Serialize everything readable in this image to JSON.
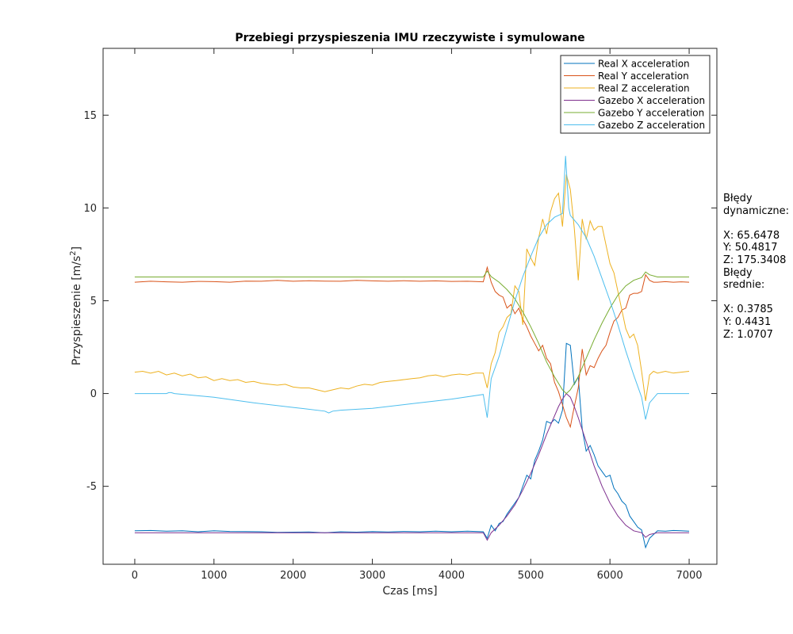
{
  "chart_data": {
    "type": "line",
    "title": "Przebiegi przyspieszenia IMU rzeczywiste i symulowane",
    "xlabel": "Czas [ms]",
    "ylabel_base": "Przyspieszenie [m/s",
    "ylabel_sup": "2",
    "ylabel_end": "]",
    "xlim": [
      -400,
      7350
    ],
    "ylim": [
      -9.2,
      18.6
    ],
    "xticks": [
      0,
      1000,
      2000,
      3000,
      4000,
      5000,
      6000,
      7000
    ],
    "xtick_labels": [
      "0",
      "1000",
      "2000",
      "3000",
      "4000",
      "5000",
      "6000",
      "7000"
    ],
    "yticks": [
      -5,
      0,
      5,
      10,
      15
    ],
    "ytick_labels": [
      "-5",
      "0",
      "5",
      "10",
      "15"
    ],
    "grid": false,
    "legend_position": "top-right",
    "series": [
      {
        "name": "Real X acceleration",
        "color": "#0072BD",
        "x": [
          0,
          200,
          400,
          600,
          800,
          1000,
          1200,
          1400,
          1600,
          1800,
          2000,
          2200,
          2400,
          2600,
          2800,
          3000,
          3200,
          3400,
          3600,
          3800,
          4000,
          4200,
          4400,
          4450,
          4500,
          4550,
          4600,
          4650,
          4700,
          4750,
          4800,
          4850,
          4900,
          4950,
          5000,
          5050,
          5100,
          5150,
          5200,
          5250,
          5300,
          5350,
          5400,
          5450,
          5500,
          5550,
          5600,
          5650,
          5700,
          5750,
          5800,
          5850,
          5900,
          5950,
          6000,
          6050,
          6100,
          6150,
          6200,
          6250,
          6300,
          6350,
          6400,
          6450,
          6500,
          6550,
          6600,
          6700,
          6800,
          6900,
          7000
        ],
        "y": [
          -7.4,
          -7.38,
          -7.42,
          -7.4,
          -7.45,
          -7.4,
          -7.43,
          -7.44,
          -7.45,
          -7.48,
          -7.47,
          -7.46,
          -7.5,
          -7.45,
          -7.47,
          -7.44,
          -7.46,
          -7.43,
          -7.45,
          -7.42,
          -7.45,
          -7.42,
          -7.45,
          -7.8,
          -7.1,
          -7.4,
          -7.0,
          -6.9,
          -6.5,
          -6.2,
          -5.9,
          -5.6,
          -5.0,
          -4.4,
          -4.6,
          -3.6,
          -3.1,
          -2.5,
          -1.5,
          -1.6,
          -1.4,
          -1.6,
          -0.9,
          2.7,
          2.6,
          0.5,
          0.9,
          -1.9,
          -3.1,
          -2.8,
          -3.3,
          -3.9,
          -4.2,
          -4.5,
          -4.4,
          -5.1,
          -5.4,
          -5.8,
          -6.0,
          -6.6,
          -6.9,
          -7.2,
          -7.35,
          -8.3,
          -7.8,
          -7.6,
          -7.4,
          -7.42,
          -7.38,
          -7.4,
          -7.42
        ]
      },
      {
        "name": "Real Y acceleration",
        "color": "#D95319",
        "x": [
          0,
          200,
          400,
          600,
          800,
          1000,
          1200,
          1400,
          1600,
          1800,
          2000,
          2200,
          2400,
          2600,
          2800,
          3000,
          3200,
          3400,
          3600,
          3800,
          4000,
          4200,
          4400,
          4450,
          4500,
          4550,
          4600,
          4650,
          4700,
          4750,
          4800,
          4850,
          4900,
          4950,
          5000,
          5050,
          5100,
          5150,
          5200,
          5250,
          5300,
          5350,
          5400,
          5450,
          5500,
          5550,
          5600,
          5650,
          5700,
          5750,
          5800,
          5850,
          5900,
          5950,
          6000,
          6050,
          6100,
          6150,
          6200,
          6250,
          6300,
          6350,
          6400,
          6450,
          6500,
          6550,
          6600,
          6700,
          6800,
          6900,
          7000
        ],
        "y": [
          6.0,
          6.05,
          6.02,
          6.0,
          6.04,
          6.03,
          6.0,
          6.06,
          6.05,
          6.1,
          6.05,
          6.08,
          6.06,
          6.05,
          6.1,
          6.07,
          6.05,
          6.08,
          6.05,
          6.07,
          6.04,
          6.05,
          6.02,
          6.8,
          6.0,
          5.5,
          5.3,
          5.2,
          4.6,
          4.8,
          4.3,
          4.6,
          4.0,
          3.6,
          3.1,
          2.7,
          2.3,
          2.6,
          1.9,
          1.6,
          0.6,
          0.1,
          -0.6,
          -1.3,
          -1.8,
          -0.7,
          0.3,
          2.4,
          1.0,
          1.5,
          1.4,
          1.9,
          2.3,
          2.6,
          3.3,
          3.9,
          4.1,
          4.5,
          4.6,
          5.3,
          5.4,
          5.4,
          5.5,
          6.4,
          6.1,
          6.0,
          6.0,
          6.03,
          6.0,
          6.02,
          6.0
        ]
      },
      {
        "name": "Real Z acceleration",
        "color": "#EDB120",
        "x": [
          0,
          100,
          200,
          300,
          400,
          500,
          600,
          700,
          800,
          900,
          1000,
          1100,
          1200,
          1300,
          1400,
          1500,
          1600,
          1700,
          1800,
          1900,
          2000,
          2100,
          2200,
          2300,
          2400,
          2500,
          2600,
          2700,
          2800,
          2900,
          3000,
          3100,
          3200,
          3300,
          3400,
          3500,
          3600,
          3700,
          3800,
          3900,
          4000,
          4100,
          4200,
          4300,
          4400,
          4450,
          4500,
          4550,
          4600,
          4650,
          4700,
          4750,
          4800,
          4850,
          4900,
          4950,
          5000,
          5050,
          5100,
          5150,
          5200,
          5250,
          5300,
          5350,
          5400,
          5450,
          5500,
          5550,
          5600,
          5650,
          5700,
          5750,
          5800,
          5850,
          5900,
          5950,
          6000,
          6050,
          6100,
          6150,
          6200,
          6250,
          6300,
          6350,
          6400,
          6450,
          6500,
          6550,
          6600,
          6700,
          6800,
          6900,
          7000
        ],
        "y": [
          1.15,
          1.2,
          1.1,
          1.2,
          1.0,
          1.1,
          0.95,
          1.05,
          0.85,
          0.9,
          0.7,
          0.8,
          0.7,
          0.75,
          0.6,
          0.65,
          0.55,
          0.5,
          0.45,
          0.5,
          0.35,
          0.3,
          0.3,
          0.2,
          0.1,
          0.2,
          0.3,
          0.25,
          0.4,
          0.5,
          0.45,
          0.6,
          0.65,
          0.7,
          0.75,
          0.8,
          0.85,
          0.95,
          1.0,
          0.9,
          1.0,
          1.05,
          1.0,
          1.1,
          1.1,
          0.3,
          1.6,
          2.2,
          3.3,
          3.6,
          4.1,
          4.3,
          5.8,
          5.5,
          3.7,
          7.8,
          7.3,
          6.9,
          8.4,
          9.4,
          8.6,
          9.8,
          10.5,
          10.8,
          9.0,
          11.8,
          11.0,
          8.9,
          6.1,
          9.4,
          8.3,
          9.3,
          8.8,
          9.0,
          9.0,
          8.0,
          7.0,
          6.5,
          5.5,
          4.5,
          3.5,
          3.0,
          3.2,
          2.6,
          1.2,
          -0.4,
          1.0,
          1.2,
          1.1,
          1.2,
          1.1,
          1.15,
          1.2
        ]
      },
      {
        "name": "Gazebo X acceleration",
        "color": "#7E2F8E",
        "x": [
          0,
          500,
          1000,
          1500,
          2000,
          2500,
          3000,
          3500,
          4000,
          4400,
          4450,
          4500,
          4600,
          4700,
          4800,
          4900,
          5000,
          5100,
          5200,
          5300,
          5350,
          5400,
          5450,
          5500,
          5550,
          5600,
          5700,
          5800,
          5900,
          6000,
          6100,
          6200,
          6300,
          6400,
          6450,
          6500,
          6600,
          7000
        ],
        "y": [
          -7.5,
          -7.5,
          -7.5,
          -7.5,
          -7.5,
          -7.5,
          -7.5,
          -7.5,
          -7.5,
          -7.5,
          -7.9,
          -7.5,
          -7.1,
          -6.6,
          -6.0,
          -5.2,
          -4.3,
          -3.3,
          -2.2,
          -1.2,
          -0.7,
          -0.3,
          0.0,
          -0.2,
          -0.7,
          -1.3,
          -2.6,
          -3.9,
          -5.0,
          -5.9,
          -6.6,
          -7.1,
          -7.4,
          -7.5,
          -7.75,
          -7.6,
          -7.5,
          -7.5
        ]
      },
      {
        "name": "Gazebo Y acceleration",
        "color": "#77AC30",
        "x": [
          0,
          500,
          1000,
          1500,
          2000,
          2500,
          3000,
          3500,
          4000,
          4400,
          4450,
          4500,
          4600,
          4700,
          4800,
          4900,
          5000,
          5100,
          5200,
          5300,
          5400,
          5450,
          5500,
          5600,
          5700,
          5800,
          5900,
          6000,
          6100,
          6200,
          6300,
          6400,
          6450,
          6500,
          6600,
          7000
        ],
        "y": [
          6.28,
          6.28,
          6.28,
          6.28,
          6.28,
          6.28,
          6.28,
          6.28,
          6.28,
          6.28,
          6.6,
          6.3,
          6.0,
          5.6,
          5.1,
          4.4,
          3.6,
          2.7,
          1.7,
          0.9,
          0.2,
          0.0,
          0.2,
          0.9,
          1.9,
          2.9,
          3.8,
          4.6,
          5.3,
          5.8,
          6.1,
          6.25,
          6.55,
          6.4,
          6.28,
          6.28
        ]
      },
      {
        "name": "Gazebo Z acceleration",
        "color": "#4DBEEE",
        "x": [
          0,
          400,
          430,
          460,
          500,
          1000,
          1500,
          2000,
          2400,
          2450,
          2500,
          2600,
          3000,
          3500,
          4000,
          4400,
          4450,
          4500,
          4600,
          4700,
          4800,
          4900,
          5000,
          5100,
          5200,
          5300,
          5400,
          5440,
          5480,
          5500,
          5600,
          5700,
          5800,
          5900,
          6000,
          6100,
          6200,
          6300,
          6400,
          6450,
          6500,
          6600,
          7000
        ],
        "y": [
          0.0,
          0.0,
          0.05,
          0.05,
          0.0,
          -0.2,
          -0.5,
          -0.75,
          -0.95,
          -1.05,
          -0.95,
          -0.9,
          -0.8,
          -0.55,
          -0.3,
          -0.05,
          -1.3,
          0.8,
          2.0,
          3.5,
          5.0,
          6.3,
          7.4,
          8.4,
          9.1,
          9.5,
          9.7,
          12.8,
          10.0,
          9.6,
          9.1,
          8.4,
          7.4,
          6.2,
          5.0,
          3.7,
          2.3,
          1.0,
          -0.2,
          -1.4,
          -0.5,
          0.0,
          0.0
        ]
      }
    ]
  },
  "annotation_lines": [
    "Błędy",
    "dynamiczne:",
    "",
    "X: 65.6478",
    "Y: 50.4817",
    "Z: 175.3408",
    "Błędy",
    "srednie:",
    "",
    "X: 0.3785",
    "Y: 0.4431",
    "Z: 1.0707"
  ]
}
